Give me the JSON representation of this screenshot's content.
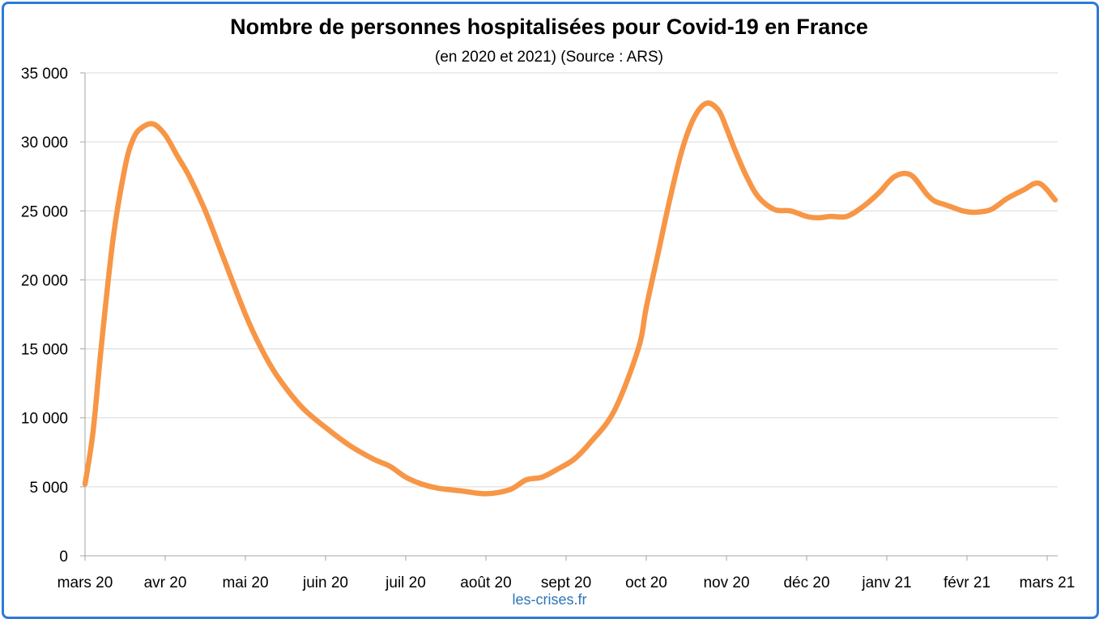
{
  "chart_data": {
    "type": "line",
    "title": "Nombre de personnes hospitalisées pour Covid-19 en France",
    "subtitle": "(en 2020 et 2021) (Source : ARS)",
    "xlabel": "",
    "ylabel": "",
    "ylim": [
      0,
      35000
    ],
    "yticks": [
      0,
      5000,
      10000,
      15000,
      20000,
      25000,
      30000,
      35000
    ],
    "ytick_labels": [
      "0",
      "5 000",
      "10 000",
      "15 000",
      "20 000",
      "25 000",
      "30 000",
      "35 000"
    ],
    "xtick_labels": [
      "mars 20",
      "avr 20",
      "mai 20",
      "juin 20",
      "juil 20",
      "août 20",
      "sept 20",
      "oct 20",
      "nov 20",
      "déc 20",
      "janv 21",
      "févr 21",
      "mars 21"
    ],
    "xlim": [
      0,
      12.1
    ],
    "grid": true,
    "line_color": "#f79646",
    "series": [
      {
        "name": "Personnes hospitalisées",
        "x": [
          0,
          0.1,
          0.2,
          0.35,
          0.5,
          0.6,
          0.7,
          0.85,
          1.0,
          1.15,
          1.3,
          1.5,
          1.7,
          2.0,
          2.2,
          2.4,
          2.7,
          3.0,
          3.3,
          3.6,
          3.8,
          4.0,
          4.2,
          4.4,
          4.7,
          5.0,
          5.3,
          5.5,
          5.7,
          5.9,
          6.1,
          6.3,
          6.6,
          6.9,
          7.0,
          7.15,
          7.3,
          7.45,
          7.6,
          7.75,
          7.9,
          8.0,
          8.1,
          8.25,
          8.4,
          8.6,
          8.8,
          9.0,
          9.15,
          9.3,
          9.5,
          9.7,
          9.9,
          10.1,
          10.3,
          10.5,
          10.6,
          10.7,
          10.8,
          10.95,
          11.1,
          11.3,
          11.5,
          11.7,
          11.9,
          12.1
        ],
        "values": [
          5200,
          9000,
          15000,
          23000,
          28200,
          30200,
          31000,
          31300,
          30500,
          29000,
          27500,
          25000,
          22000,
          17500,
          15000,
          13000,
          10800,
          9300,
          8000,
          7000,
          6500,
          5700,
          5200,
          4900,
          4700,
          4500,
          4800,
          5500,
          5700,
          6300,
          7000,
          8200,
          10500,
          15000,
          18000,
          22000,
          26000,
          29500,
          31800,
          32800,
          32300,
          31000,
          29500,
          27500,
          26000,
          25100,
          25000,
          24600,
          24500,
          24600,
          24600,
          25300,
          26300,
          27500,
          27600,
          26200,
          25700,
          25500,
          25300,
          25000,
          24900,
          25100,
          25900,
          26500,
          27000,
          25800
        ]
      }
    ]
  },
  "footer": {
    "credit": "les-crises.fr"
  }
}
